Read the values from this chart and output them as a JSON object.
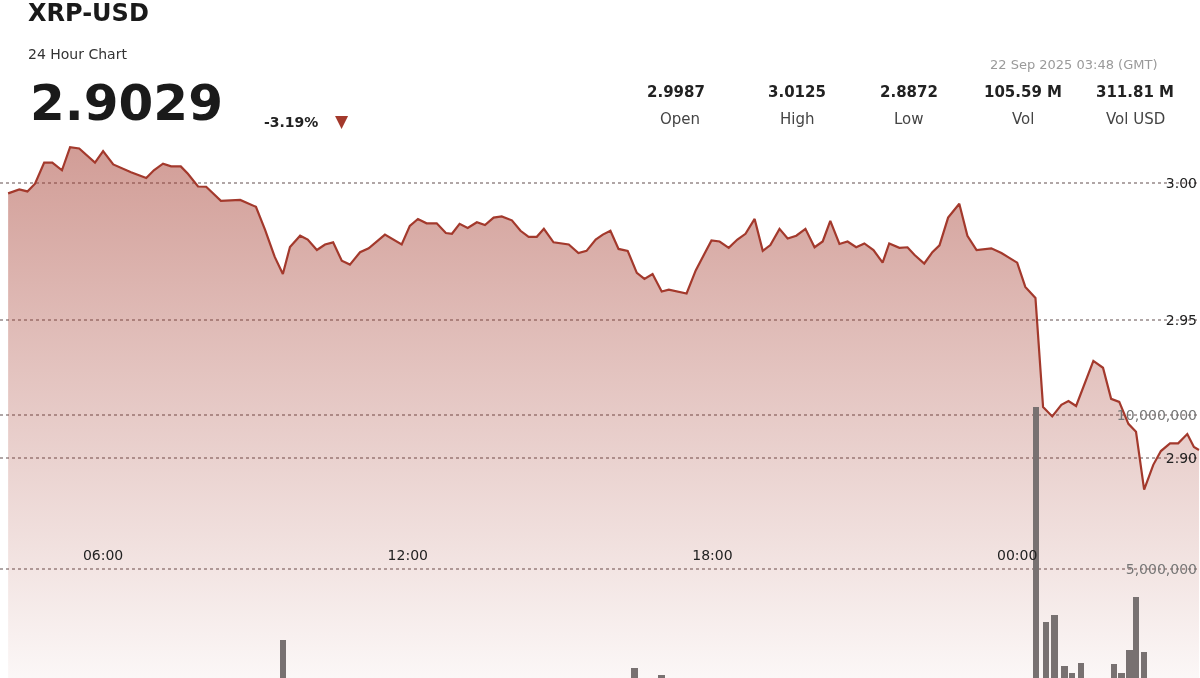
{
  "chart_data": {
    "type": "area",
    "title": "XRP-USD",
    "subtitle": "24 Hour Chart",
    "annotations": [
      "2.9029",
      "-3.19%",
      "▼",
      "2.9987",
      "Open",
      "3.0125",
      "High",
      "2.8872",
      "Low",
      "105.59 M",
      "Vol",
      "311.81 M",
      "Vol USD",
      "22 Sep 2025 03:48 (GMT)"
    ],
    "xlim": [
      3.97,
      27.6
    ],
    "xticks": [
      {
        "value": 6,
        "label": "06:00"
      },
      {
        "value": 12,
        "label": "12:00"
      },
      {
        "value": 18,
        "label": "18:00"
      },
      {
        "value": 24,
        "label": "00:00"
      }
    ],
    "ylim": [
      2.82,
      3.0665
    ],
    "yticks": [
      {
        "value": 2.9,
        "label": "2.90"
      },
      {
        "value": 2.95,
        "label": "2.95"
      },
      {
        "value": 3,
        "label": "3.00"
      }
    ],
    "y2lim": [
      1460000,
      23470000
    ],
    "y2ticks": [
      {
        "value": 5000000,
        "label": "5,000,000"
      },
      {
        "value": 10000000,
        "label": "10,000,000"
      }
    ],
    "grid": "y",
    "series": [
      {
        "color": "#a3392c",
        "x": [
          4.13,
          4.35,
          4.51,
          4.66,
          4.84,
          5.0,
          5.19,
          5.35,
          5.53,
          5.84,
          6.0,
          6.2,
          6.55,
          6.85,
          7.0,
          7.18,
          7.34,
          7.53,
          7.67,
          7.87,
          8.03,
          8.32,
          8.7,
          9.01,
          9.19,
          9.38,
          9.54,
          9.68,
          9.88,
          10.03,
          10.21,
          10.37,
          10.53,
          10.7,
          10.86,
          11.06,
          11.23,
          11.55,
          11.88,
          12.04,
          12.2,
          12.37,
          12.57,
          12.75,
          12.87,
          13.02,
          13.18,
          13.36,
          13.52,
          13.69,
          13.85,
          14.05,
          14.22,
          14.38,
          14.54,
          14.68,
          14.87,
          15.17,
          15.36,
          15.52,
          15.7,
          15.84,
          15.99,
          16.15,
          16.33,
          16.51,
          16.66,
          16.82,
          17.0,
          17.14,
          17.49,
          17.67,
          17.98,
          18.14,
          18.32,
          18.49,
          18.65,
          18.83,
          18.99,
          19.14,
          19.32,
          19.48,
          19.65,
          19.83,
          20.01,
          20.17,
          20.32,
          20.5,
          20.66,
          20.83,
          20.99,
          21.17,
          21.35,
          21.48,
          21.68,
          21.84,
          21.98,
          22.17,
          22.33,
          22.47,
          22.64,
          22.86,
          23.02,
          23.2,
          23.49,
          23.69,
          24.0,
          24.16,
          24.36,
          24.51,
          24.69,
          24.87,
          25.01,
          25.16,
          25.5,
          25.69,
          25.85,
          26.01,
          26.19,
          26.34,
          26.5,
          26.68,
          26.83,
          27.01,
          27.17,
          27.35,
          27.48,
          27.58
        ],
        "values": [
          2.9962,
          2.9976,
          2.9969,
          2.9997,
          3.0074,
          3.0074,
          3.0046,
          3.013,
          3.0125,
          3.0074,
          3.0116,
          3.0067,
          3.0039,
          3.0018,
          3.0046,
          3.007,
          3.006,
          3.006,
          3.0033,
          2.9987,
          2.9986,
          2.9935,
          2.9938,
          2.9913,
          2.9829,
          2.9731,
          2.9669,
          2.9767,
          2.9808,
          2.9794,
          2.9756,
          2.9776,
          2.9784,
          2.9717,
          2.9703,
          2.9748,
          2.9762,
          2.9812,
          2.9776,
          2.9844,
          2.9869,
          2.9853,
          2.9853,
          2.9818,
          2.9815,
          2.9851,
          2.9836,
          2.9857,
          2.9847,
          2.9874,
          2.9878,
          2.9864,
          2.9826,
          2.9804,
          2.9804,
          2.9833,
          2.9784,
          2.9776,
          2.9745,
          2.9753,
          2.9794,
          2.9812,
          2.9826,
          2.976,
          2.9753,
          2.9673,
          2.9651,
          2.9669,
          2.9605,
          2.9612,
          2.9598,
          2.9682,
          2.9791,
          2.9787,
          2.9764,
          2.9794,
          2.9815,
          2.9869,
          2.9753,
          2.9774,
          2.9833,
          2.9798,
          2.9808,
          2.9833,
          2.9766,
          2.9787,
          2.9862,
          2.9778,
          2.9787,
          2.9766,
          2.978,
          2.9756,
          2.971,
          2.978,
          2.9764,
          2.9766,
          2.9738,
          2.9707,
          2.9748,
          2.9773,
          2.9874,
          2.9924,
          2.9808,
          2.9756,
          2.9762,
          2.9745,
          2.971,
          2.9622,
          2.9582,
          2.9185,
          2.9151,
          2.9193,
          2.9207,
          2.9189,
          2.9353,
          2.9328,
          2.9215,
          2.9204,
          2.9124,
          2.9095,
          2.8885,
          2.8975,
          2.9025,
          2.9053,
          2.9053,
          2.9087,
          2.904,
          2.9029
        ]
      },
      {
        "type": "bar",
        "axis": "y2",
        "color": "#787171",
        "x": [
          9.54,
          16.47,
          17.0,
          24.37,
          24.57,
          24.73,
          24.93,
          25.08,
          25.26,
          25.91,
          26.05,
          26.21,
          26.34,
          26.5
        ],
        "values": [
          2690000,
          1790000,
          1560000,
          10260000,
          3280000,
          3510000,
          1850000,
          1620000,
          1950000,
          1920000,
          1620000,
          2370000,
          4090000,
          2300000
        ]
      }
    ]
  }
}
